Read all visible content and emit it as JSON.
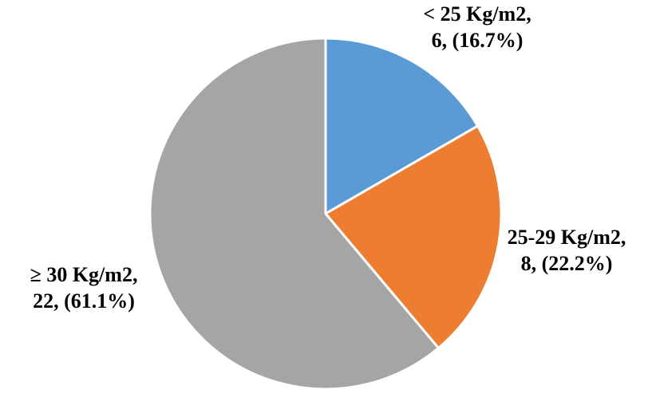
{
  "chart_data": {
    "type": "pie",
    "categories": [
      "< 25 Kg/m2,",
      "25-29 Kg/m2,",
      "≥ 30 Kg/m2,"
    ],
    "values": [
      6,
      8,
      22
    ],
    "value_labels": [
      "6, (16.7%)",
      "8, (22.2%)",
      "22, (61.1%)"
    ],
    "colors": [
      "#5b9bd5",
      "#ed7d31",
      "#a5a5a5"
    ]
  }
}
